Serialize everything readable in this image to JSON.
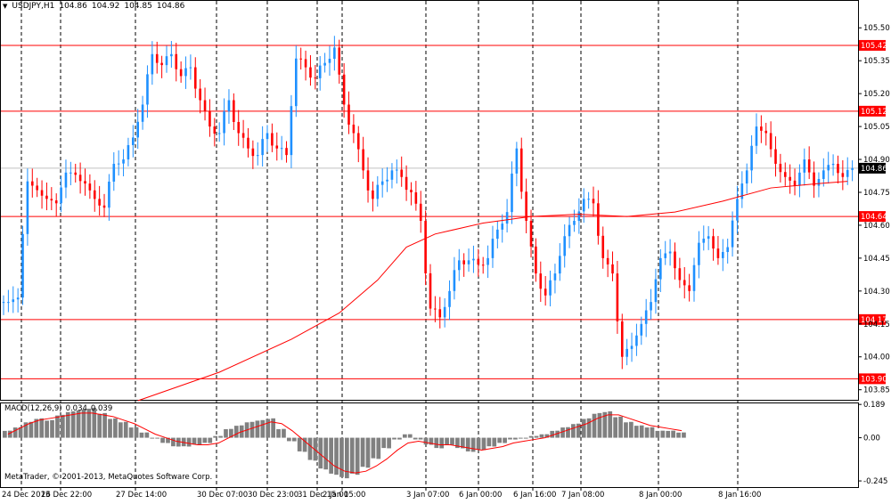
{
  "header": {
    "symbol": "USDJPY,H1",
    "open": "104.86",
    "high": "104.92",
    "low": "104.85",
    "close": "104.86",
    "menu_icon": "triangle-down-icon"
  },
  "macd_label": {
    "name": "MACD(12,26,9)",
    "value1": "0.034",
    "value2": "0.039"
  },
  "copyright": "MetaTrader, © 2001-2013, MetaQuotes Software Corp.",
  "colors": {
    "bull": "#1e90ff",
    "bear": "#ff0000",
    "ma": "#ff0000",
    "level": "#ff0000",
    "histogram": "#808080",
    "signal": "#ff0000",
    "current_price_line": "#c0c0c0",
    "label_bg": "#ff0000"
  },
  "chart_data": {
    "type": "candlestick",
    "title": "USDJPY,H1",
    "ylim": [
      103.8,
      105.57
    ],
    "price_ticks": [
      "105.50",
      "105.35",
      "105.20",
      "105.05",
      "104.90",
      "104.75",
      "104.60",
      "104.45",
      "104.30",
      "104.15",
      "104.00",
      "103.85"
    ],
    "current_price": "104.86",
    "horizontal_levels": [
      "105.42",
      "105.12",
      "104.64",
      "104.17",
      "103.90"
    ],
    "x_tick_labels": [
      "24 Dec 2013",
      "26 Dec 22:00",
      "27 Dec 14:00",
      "30 Dec 07:00",
      "30 Dec 23:00",
      "31 Dec 15:00",
      "2 Jan 15:00",
      "3 Jan 07:00",
      "6 Jan 00:00",
      "6 Jan 16:00",
      "7 Jan 08:00",
      "8 Jan 00:00",
      "8 Jan 16:00"
    ],
    "close_path": [
      104.25,
      104.27,
      104.8,
      104.76,
      104.72,
      104.7,
      104.84,
      104.83,
      104.79,
      104.72,
      104.68,
      104.88,
      104.9,
      105.0,
      105.15,
      105.38,
      105.33,
      105.38,
      105.28,
      105.32,
      105.17,
      105.05,
      105.02,
      105.17,
      105.02,
      104.95,
      104.92,
      105.02,
      104.95,
      104.92,
      105.36,
      105.32,
      105.27,
      105.34,
      105.41,
      105.15,
      105.02,
      104.85,
      104.72,
      104.8,
      104.85,
      104.82,
      104.75,
      104.62,
      104.22,
      104.18,
      104.3,
      104.44,
      104.44,
      104.42,
      104.45,
      104.58,
      104.66,
      104.95,
      104.62,
      104.38,
      104.28,
      104.38,
      104.55,
      104.62,
      104.72,
      104.7,
      104.45,
      104.38,
      104.0,
      104.05,
      104.15,
      104.25,
      104.45,
      104.48,
      104.35,
      104.3,
      104.52,
      104.55,
      104.45,
      104.5,
      104.72,
      104.85,
      105.05,
      105.02,
      104.88,
      104.82,
      104.78,
      104.9,
      104.78,
      104.85,
      104.88,
      104.82,
      104.86
    ],
    "ma_points": [
      [
        28,
        103.8
      ],
      [
        45,
        103.93
      ],
      [
        60,
        104.08
      ],
      [
        70,
        104.2
      ],
      [
        78,
        104.35
      ],
      [
        84,
        104.5
      ],
      [
        90,
        104.56
      ],
      [
        100,
        104.61
      ],
      [
        110,
        104.64
      ],
      [
        120,
        104.65
      ],
      [
        130,
        104.64
      ],
      [
        140,
        104.66
      ],
      [
        150,
        104.71
      ],
      [
        160,
        104.77
      ],
      [
        170,
        104.79
      ],
      [
        176,
        104.8
      ]
    ],
    "macd": {
      "ylim": [
        -0.28,
        0.2
      ],
      "ticks": [
        "0.189",
        "0.00",
        "-0.245"
      ],
      "histogram": [
        0.04,
        0.06,
        0.09,
        0.11,
        0.1,
        0.13,
        0.15,
        0.16,
        0.17,
        0.14,
        0.11,
        0.09,
        0.06,
        0.03,
        0.0,
        -0.03,
        -0.05,
        -0.05,
        -0.04,
        -0.03,
        0.01,
        0.05,
        0.07,
        0.09,
        0.1,
        0.11,
        0.05,
        -0.02,
        -0.08,
        -0.13,
        -0.18,
        -0.21,
        -0.23,
        -0.21,
        -0.17,
        -0.12,
        -0.06,
        -0.01,
        0.02,
        -0.01,
        -0.04,
        -0.06,
        -0.04,
        -0.06,
        -0.08,
        -0.07,
        -0.05,
        -0.03,
        -0.01,
        0.0,
        0.01,
        0.02,
        0.04,
        0.06,
        0.08,
        0.11,
        0.14,
        0.15,
        0.12,
        0.09,
        0.07,
        0.06,
        0.04,
        0.04,
        0.03
      ],
      "signal": [
        0.02,
        0.05,
        0.08,
        0.1,
        0.11,
        0.12,
        0.13,
        0.14,
        0.14,
        0.13,
        0.12,
        0.1,
        0.08,
        0.05,
        0.02,
        0.0,
        -0.02,
        -0.03,
        -0.04,
        -0.04,
        -0.03,
        0.0,
        0.03,
        0.05,
        0.07,
        0.09,
        0.08,
        0.04,
        -0.01,
        -0.06,
        -0.11,
        -0.16,
        -0.19,
        -0.2,
        -0.19,
        -0.16,
        -0.12,
        -0.07,
        -0.03,
        -0.02,
        -0.03,
        -0.04,
        -0.04,
        -0.05,
        -0.06,
        -0.07,
        -0.06,
        -0.05,
        -0.03,
        -0.02,
        -0.01,
        0.0,
        0.02,
        0.04,
        0.06,
        0.08,
        0.11,
        0.13,
        0.13,
        0.11,
        0.09,
        0.07,
        0.06,
        0.05,
        0.04
      ]
    }
  }
}
